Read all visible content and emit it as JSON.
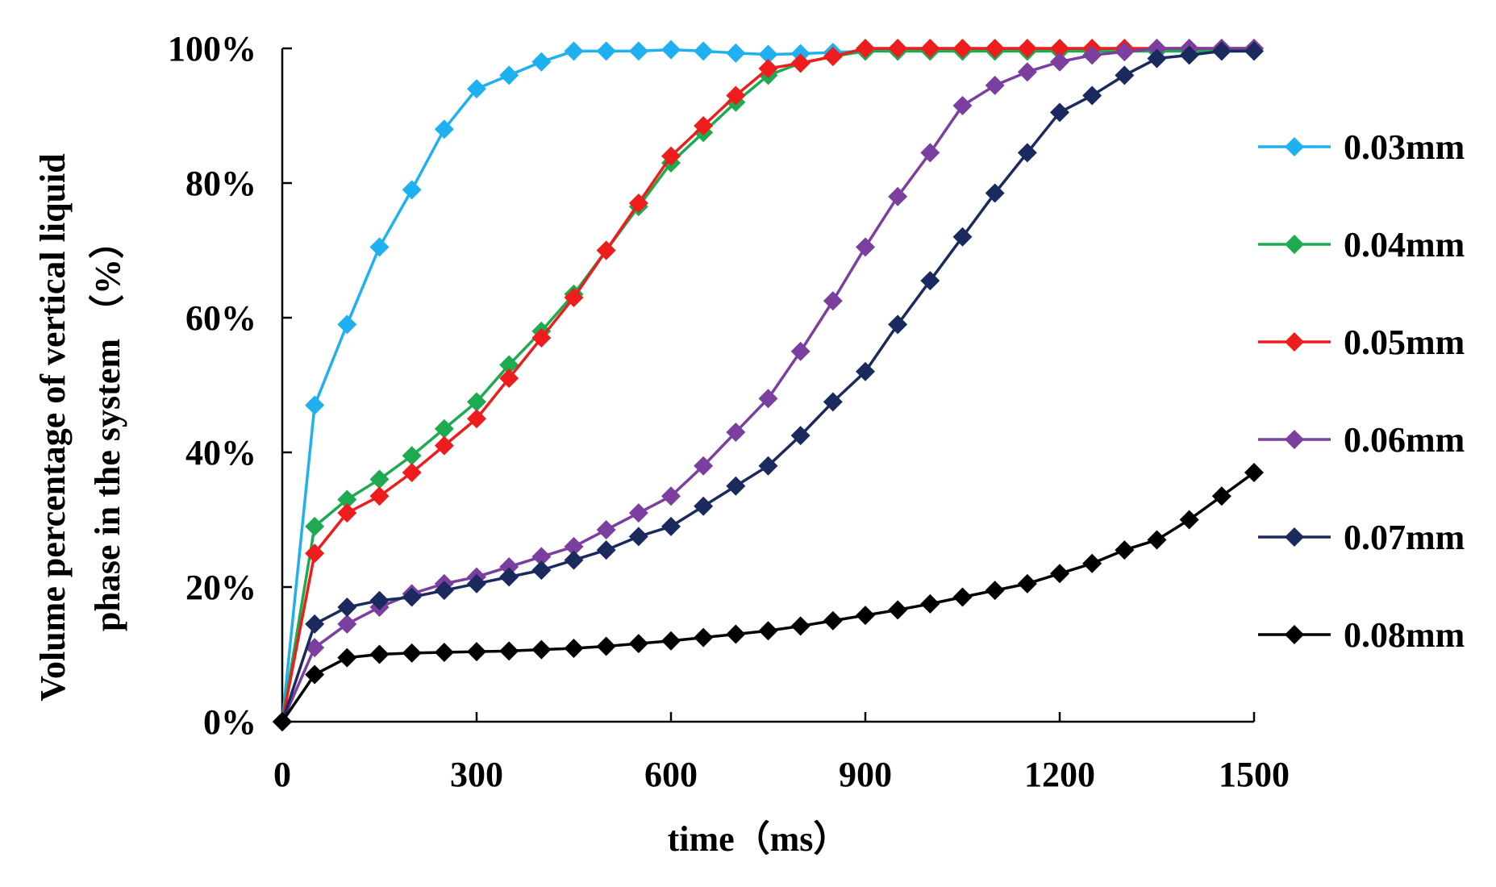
{
  "chart_data": {
    "type": "line",
    "title": "",
    "xlabel": "time（ms）",
    "ylabel_lines": [
      "Volume percentage of vertical liquid",
      "phase in the system （%）"
    ],
    "xlim": [
      0,
      1500
    ],
    "ylim": [
      0,
      100
    ],
    "xticks": [
      0,
      300,
      600,
      900,
      1200,
      1500
    ],
    "yticks": [
      0,
      20,
      40,
      60,
      80,
      100
    ],
    "ytick_labels": [
      "0%",
      "20%",
      "40%",
      "60%",
      "80%",
      "100%"
    ],
    "grid": false,
    "legend_position": "right",
    "x": [
      0,
      50,
      100,
      150,
      200,
      250,
      300,
      350,
      400,
      450,
      500,
      550,
      600,
      650,
      700,
      750,
      800,
      850,
      900,
      950,
      1000,
      1050,
      1100,
      1150,
      1200,
      1250,
      1300,
      1350,
      1400,
      1450,
      1500
    ],
    "series": [
      {
        "name": "0.03mm",
        "color": "#1eb0f0",
        "values": [
          0,
          47,
          59,
          70.5,
          79,
          88,
          94,
          96,
          98,
          99.6,
          99.6,
          99.6,
          99.8,
          99.6,
          99.3,
          99.1,
          99.2,
          99.4,
          99.6,
          99.6,
          99.6,
          99.6,
          99.6,
          99.6,
          99.6,
          99.6,
          99.6,
          99.6,
          99.6,
          99.6,
          99.6
        ]
      },
      {
        "name": "0.04mm",
        "color": "#1daa50",
        "values": [
          0,
          29,
          33,
          36,
          39.5,
          43.5,
          47.5,
          53,
          58,
          63.5,
          70,
          76.5,
          83,
          87.5,
          92,
          96,
          97.8,
          98.8,
          99.6,
          99.6,
          99.6,
          99.6,
          99.6,
          99.6,
          99.6,
          99.6,
          99.6,
          99.6,
          99.6,
          99.6,
          99.6
        ]
      },
      {
        "name": "0.05mm",
        "color": "#ee1c1c",
        "values": [
          0,
          25,
          31,
          33.5,
          37,
          41,
          45,
          51,
          57,
          63,
          70,
          77,
          84,
          88.5,
          93,
          97,
          97.8,
          98.8,
          100,
          100,
          100,
          100,
          100,
          100,
          100,
          100,
          100,
          100,
          100,
          100,
          100
        ]
      },
      {
        "name": "0.06mm",
        "color": "#7b3fa0",
        "values": [
          0,
          11,
          14.5,
          17,
          19,
          20.5,
          21.5,
          23,
          24.5,
          26,
          28.5,
          31,
          33.5,
          38,
          43,
          48,
          55,
          62.5,
          70.5,
          78,
          84.5,
          91.5,
          94.5,
          96.5,
          98,
          99,
          99.5,
          100,
          100,
          100,
          100
        ]
      },
      {
        "name": "0.07mm",
        "color": "#1b2a5e",
        "values": [
          0,
          14.5,
          17,
          18,
          18.5,
          19.5,
          20.5,
          21.5,
          22.5,
          24,
          25.5,
          27.5,
          29,
          32,
          35,
          38,
          42.5,
          47.5,
          52,
          59,
          65.5,
          72,
          78.5,
          84.5,
          90.5,
          93,
          96,
          98.5,
          99,
          99.6,
          99.6
        ]
      },
      {
        "name": "0.08mm",
        "color": "#000000",
        "values": [
          0,
          7,
          9.5,
          10,
          10.2,
          10.3,
          10.4,
          10.5,
          10.7,
          10.9,
          11.2,
          11.6,
          12,
          12.5,
          13,
          13.5,
          14.2,
          15,
          15.8,
          16.6,
          17.5,
          18.5,
          19.5,
          20.5,
          22,
          23.5,
          25.5,
          27,
          30,
          33.5,
          37
        ]
      }
    ]
  }
}
